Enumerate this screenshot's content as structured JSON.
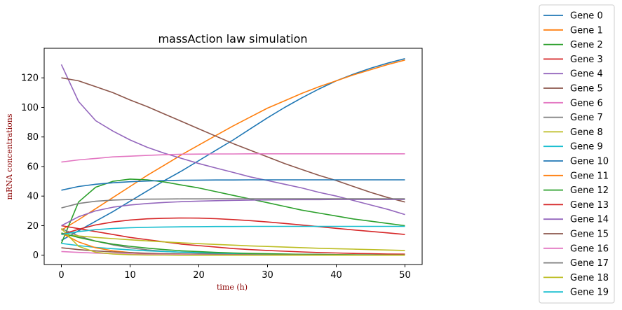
{
  "chart_data": {
    "type": "line",
    "title": "massAction law simulation",
    "xlabel": "time (h)",
    "ylabel": "mRNA concentrations",
    "xlim": [
      -2.5,
      52.5
    ],
    "ylim": [
      -6.3,
      140
    ],
    "xticks": [
      0,
      10,
      20,
      30,
      40,
      50
    ],
    "yticks": [
      0,
      20,
      40,
      60,
      80,
      100,
      120
    ],
    "legend_position": "outside-right",
    "grid": false,
    "x": [
      0,
      2.5,
      5,
      7.5,
      10,
      12.5,
      15,
      17.5,
      20,
      22.5,
      25,
      27.5,
      30,
      32.5,
      35,
      37.5,
      40,
      42.5,
      45,
      47.5,
      50
    ],
    "series": [
      {
        "name": "Gene 0",
        "color": "#1f77b4",
        "values": [
          10,
          16.5,
          23,
          29.5,
          36.5,
          43.5,
          50.5,
          57,
          64,
          71,
          78,
          85.5,
          93,
          100,
          106.5,
          112.5,
          118,
          122.5,
          126.5,
          130,
          133
        ]
      },
      {
        "name": "Gene 1",
        "color": "#ff7f0e",
        "values": [
          17,
          24,
          31.5,
          39,
          46.5,
          54,
          61,
          68,
          74.5,
          81,
          87.5,
          93.5,
          99.5,
          104.5,
          109.5,
          114,
          118,
          122,
          125.5,
          129,
          132
        ]
      },
      {
        "name": "Gene 2",
        "color": "#2ca02c",
        "values": [
          8,
          36,
          46,
          50,
          51.5,
          51,
          49.5,
          47.5,
          45.5,
          43,
          40.5,
          38,
          35.5,
          33,
          30.5,
          28.5,
          26.5,
          24.5,
          23,
          21.5,
          20
        ]
      },
      {
        "name": "Gene 3",
        "color": "#d62728",
        "values": [
          20,
          18,
          16,
          14,
          12,
          10.5,
          9,
          7.5,
          6.5,
          5.5,
          4.5,
          3.8,
          3.2,
          2.7,
          2.2,
          1.8,
          1.5,
          1.2,
          1,
          0.8,
          0.7
        ]
      },
      {
        "name": "Gene 4",
        "color": "#9467bd",
        "values": [
          129,
          104,
          91,
          84,
          78,
          73,
          69,
          65.5,
          62,
          59,
          56,
          53,
          50.5,
          48,
          45.5,
          42.5,
          40,
          37,
          34,
          31,
          27.5
        ]
      },
      {
        "name": "Gene 5",
        "color": "#8c564b",
        "values": [
          120,
          118,
          114,
          110,
          105,
          100.5,
          95.5,
          90.5,
          85.5,
          80.5,
          75.5,
          71,
          66.5,
          62,
          58,
          54,
          50.5,
          46.5,
          42.5,
          39,
          36
        ]
      },
      {
        "name": "Gene 6",
        "color": "#e377c2",
        "values": [
          63,
          64.5,
          65.5,
          66.5,
          67,
          67.5,
          68,
          68.3,
          68.4,
          68.5,
          68.5,
          68.6,
          68.6,
          68.6,
          68.6,
          68.6,
          68.6,
          68.6,
          68.6,
          68.6,
          68.6
        ]
      },
      {
        "name": "Gene 7",
        "color": "#7f7f7f",
        "values": [
          18,
          13,
          9.5,
          7,
          5,
          3.6,
          2.6,
          1.9,
          1.4,
          1,
          0.7,
          0.5,
          0.4,
          0.3,
          0.2,
          0.15,
          0.1,
          0.1,
          0.1,
          0.1,
          0.1
        ]
      },
      {
        "name": "Gene 8",
        "color": "#bcbd22",
        "values": [
          14,
          13,
          12,
          11.2,
          10.4,
          9.7,
          9,
          8.4,
          7.8,
          7.3,
          6.8,
          6.3,
          5.9,
          5.5,
          5.1,
          4.7,
          4.4,
          4.1,
          3.8,
          3.5,
          3.2
        ]
      },
      {
        "name": "Gene 9",
        "color": "#17becf",
        "values": [
          8,
          6.5,
          5.3,
          4.4,
          3.6,
          3,
          2.5,
          2.1,
          1.7,
          1.4,
          1.2,
          1,
          0.8,
          0.7,
          0.6,
          0.5,
          0.4,
          0.3,
          0.3,
          0.2,
          0.2
        ]
      },
      {
        "name": "Gene 10",
        "color": "#1f77b4",
        "values": [
          44,
          46.5,
          48,
          49,
          49.7,
          50.2,
          50.5,
          50.7,
          50.8,
          50.9,
          50.9,
          51,
          51,
          51,
          51,
          51,
          51,
          51,
          51,
          51,
          51
        ]
      },
      {
        "name": "Gene 11",
        "color": "#ff7f0e",
        "values": [
          15,
          9,
          5,
          3,
          1.8,
          1.1,
          0.7,
          0.4,
          0.3,
          0.2,
          0.1,
          0.1,
          0.1,
          0,
          0,
          0,
          0,
          0,
          0,
          0,
          0
        ]
      },
      {
        "name": "Gene 12",
        "color": "#2ca02c",
        "values": [
          15,
          12,
          9.5,
          7.5,
          6,
          4.8,
          3.8,
          3,
          2.4,
          1.9,
          1.5,
          1.2,
          1,
          0.8,
          0.6,
          0.5,
          0.4,
          0.3,
          0.2,
          0.2,
          0.2
        ]
      },
      {
        "name": "Gene 13",
        "color": "#d62728",
        "values": [
          14,
          17.5,
          20.5,
          22.5,
          23.8,
          24.6,
          25,
          25.2,
          25.1,
          24.7,
          24.1,
          23.4,
          22.5,
          21.5,
          20.4,
          19.3,
          18.2,
          17.1,
          16.1,
          15.1,
          14
        ]
      },
      {
        "name": "Gene 14",
        "color": "#9467bd",
        "values": [
          20,
          26,
          30,
          32.5,
          34,
          35,
          35.7,
          36.2,
          36.6,
          36.9,
          37.1,
          37.3,
          37.4,
          37.5,
          37.6,
          37.6,
          37.7,
          37.7,
          37.7,
          37.7,
          37.7
        ]
      },
      {
        "name": "Gene 15",
        "color": "#8c564b",
        "values": [
          5,
          3.8,
          2.9,
          2.2,
          1.7,
          1.3,
          1,
          0.8,
          0.6,
          0.5,
          0.4,
          0.3,
          0.2,
          0.2,
          0.1,
          0.1,
          0.1,
          0.1,
          0.1,
          0,
          0
        ]
      },
      {
        "name": "Gene 16",
        "color": "#e377c2",
        "values": [
          2.5,
          1.9,
          1.4,
          1.1,
          0.8,
          0.6,
          0.5,
          0.4,
          0.3,
          0.2,
          0.2,
          0.1,
          0.1,
          0.1,
          0.1,
          0,
          0,
          0,
          0,
          0,
          0
        ]
      },
      {
        "name": "Gene 17",
        "color": "#7f7f7f",
        "values": [
          32,
          35,
          36.5,
          37.3,
          37.7,
          37.9,
          38,
          38.1,
          38.1,
          38.2,
          38.2,
          38.2,
          38.2,
          38.2,
          38.2,
          38.2,
          38.2,
          38.2,
          38.2,
          38.2,
          38.2
        ]
      },
      {
        "name": "Gene 18",
        "color": "#bcbd22",
        "values": [
          18,
          6,
          2,
          0.8,
          0.3,
          0.1,
          0.1,
          0,
          0,
          0,
          0,
          0,
          0,
          0,
          0,
          0,
          0,
          0,
          0,
          0,
          0
        ]
      },
      {
        "name": "Gene 19",
        "color": "#17becf",
        "values": [
          14,
          16,
          17.3,
          18.1,
          18.6,
          18.9,
          19.1,
          19.2,
          19.3,
          19.4,
          19.4,
          19.5,
          19.5,
          19.5,
          19.5,
          19.5,
          19.5,
          19.5,
          19.5,
          19.5,
          19.5
        ]
      }
    ]
  }
}
